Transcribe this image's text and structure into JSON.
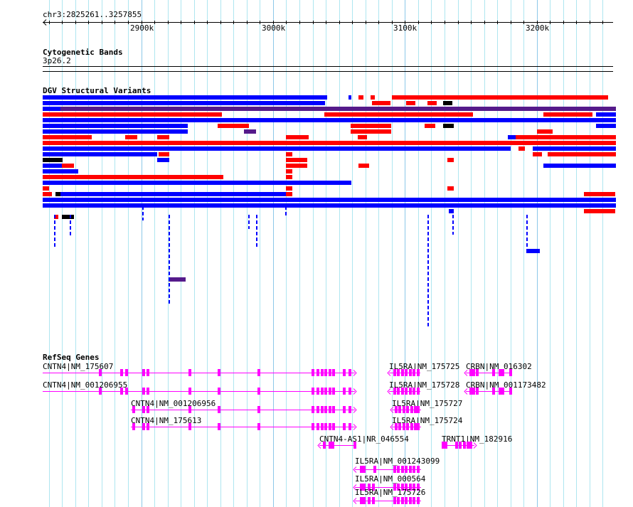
{
  "ruler": {
    "location": "chr3:2825261..3257855",
    "start_kb": 2825.261,
    "end_kb": 3257.855,
    "ticks": [
      {
        "kb": 2900,
        "label": "2900k"
      },
      {
        "kb": 3000,
        "label": "3000k"
      },
      {
        "kb": 3100,
        "label": "3100k"
      },
      {
        "kb": 3200,
        "label": "3200k"
      }
    ]
  },
  "cytoband": {
    "title": "Cytogenetic Bands",
    "band": "3p26.2"
  },
  "dgv": {
    "title": "DGV Structural Variants",
    "colors": {
      "b": "#0000ff",
      "r": "#ff0000",
      "p": "#551a8b",
      "k": "#000000"
    },
    "features": [
      [
        0,
        2825,
        3041,
        "b"
      ],
      [
        0,
        3057,
        3059,
        "b"
      ],
      [
        0,
        3065,
        3069,
        "r"
      ],
      [
        0,
        3074,
        3077,
        "r"
      ],
      [
        0,
        3090,
        3254,
        "r"
      ],
      [
        1,
        2825,
        3039,
        "b"
      ],
      [
        1,
        3075,
        3089,
        "r"
      ],
      [
        1,
        3101,
        3108,
        "r"
      ],
      [
        1,
        3117,
        3124,
        "r"
      ],
      [
        1,
        3129,
        3136,
        "k"
      ],
      [
        2,
        2825,
        2839,
        "b"
      ],
      [
        2,
        2839,
        3260,
        "p"
      ],
      [
        3,
        2825,
        2961,
        "r"
      ],
      [
        3,
        3039,
        3152,
        "r"
      ],
      [
        3,
        3205,
        3242,
        "r"
      ],
      [
        3,
        3245,
        3260,
        "b"
      ],
      [
        4,
        2825,
        3260,
        "b"
      ],
      [
        5,
        2825,
        2935,
        "b"
      ],
      [
        5,
        2958,
        2982,
        "r"
      ],
      [
        5,
        3059,
        3090,
        "r"
      ],
      [
        5,
        3115,
        3123,
        "r"
      ],
      [
        5,
        3129,
        3137,
        "k"
      ],
      [
        5,
        3245,
        3260,
        "b"
      ],
      [
        6,
        2825,
        2935,
        "b"
      ],
      [
        6,
        2978,
        2987,
        "p"
      ],
      [
        6,
        3059,
        3090,
        "r"
      ],
      [
        6,
        3200,
        3212,
        "r"
      ],
      [
        7,
        2825,
        2862,
        "r"
      ],
      [
        7,
        2888,
        2897,
        "r"
      ],
      [
        7,
        2912,
        2921,
        "r"
      ],
      [
        7,
        3010,
        3027,
        "r"
      ],
      [
        7,
        3064,
        3071,
        "r"
      ],
      [
        7,
        3178,
        3205,
        "b"
      ],
      [
        7,
        3184,
        3260,
        "r"
      ],
      [
        8,
        2825,
        3260,
        "r"
      ],
      [
        9,
        2825,
        3180,
        "b"
      ],
      [
        9,
        3186,
        3191,
        "r"
      ],
      [
        9,
        3197,
        3260,
        "b"
      ],
      [
        10,
        2825,
        2912,
        "b"
      ],
      [
        10,
        2913,
        2921,
        "r"
      ],
      [
        10,
        3010,
        3015,
        "r"
      ],
      [
        10,
        3197,
        3204,
        "r"
      ],
      [
        10,
        3208,
        3260,
        "r"
      ],
      [
        11,
        2825,
        2840,
        "k"
      ],
      [
        11,
        2912,
        2921,
        "b"
      ],
      [
        11,
        3010,
        3026,
        "r"
      ],
      [
        11,
        3132,
        3137,
        "r"
      ],
      [
        12,
        2825,
        2840,
        "b"
      ],
      [
        12,
        2840,
        2849,
        "r"
      ],
      [
        12,
        3010,
        3026,
        "r"
      ],
      [
        12,
        3065,
        3073,
        "r"
      ],
      [
        12,
        3205,
        3260,
        "b"
      ],
      [
        13,
        2825,
        2852,
        "b"
      ],
      [
        13,
        3010,
        3015,
        "r"
      ],
      [
        14,
        2825,
        2962,
        "r"
      ],
      [
        14,
        3010,
        3015,
        "r"
      ],
      [
        15,
        2825,
        3059,
        "b"
      ],
      [
        16,
        2825,
        2830,
        "r"
      ],
      [
        16,
        3010,
        3015,
        "r"
      ],
      [
        16,
        3132,
        3137,
        "r"
      ],
      [
        17,
        2825,
        2832,
        "r"
      ],
      [
        17,
        2835,
        2839,
        "k"
      ],
      [
        17,
        2839,
        3010,
        "b"
      ],
      [
        17,
        3010,
        3015,
        "r"
      ],
      [
        17,
        3236,
        3260,
        "r"
      ],
      [
        18,
        2825,
        3260,
        "b"
      ],
      [
        19,
        2825,
        3260,
        "b"
      ],
      [
        20,
        3133,
        3137,
        "b"
      ],
      [
        20,
        3236,
        3260,
        "r"
      ],
      [
        21,
        2840,
        2849,
        "k"
      ],
      [
        21,
        2834,
        2837,
        "r"
      ],
      [
        27,
        3192,
        3202,
        "b"
      ],
      [
        32,
        2921,
        2934,
        "p"
      ]
    ]
  },
  "refseq": {
    "title": "RefSeq Genes",
    "genes": [
      {
        "label": "CNTN4|NM_175607",
        "row": 0,
        "start": 2825,
        "end": 3062,
        "strand": "+",
        "exons": [
          2868,
          2884,
          2888,
          2901,
          2904,
          2936,
          2958,
          2988,
          3029,
          3033,
          3036,
          3039,
          3042,
          3045,
          3053,
          3057
        ]
      },
      {
        "label": "CNTN4|NM_001206955",
        "row": 1,
        "start": 2825,
        "end": 3062,
        "strand": "+",
        "exons": [
          2868,
          2884,
          2888,
          2901,
          2904,
          2936,
          2958,
          2988,
          3029,
          3033,
          3036,
          3039,
          3042,
          3045,
          3053,
          3057
        ]
      },
      {
        "label": "CNTN4|NM_001206956",
        "row": 2,
        "start": 2892,
        "end": 3062,
        "strand": "+",
        "exons": [
          2893,
          2901,
          2904,
          2936,
          2958,
          2988,
          3029,
          3033,
          3036,
          3039,
          3042,
          3045,
          3053,
          3057
        ]
      },
      {
        "label": "CNTN4|NM_175613",
        "row": 3,
        "start": 2892,
        "end": 3062,
        "strand": "+",
        "exons": [
          2893,
          2901,
          2904,
          2936,
          2958,
          2988,
          3029,
          3033,
          3036,
          3039,
          3042,
          3045,
          3053,
          3057
        ]
      },
      {
        "label": "IL5RA|NM_175725",
        "row": 0,
        "start": 3088,
        "end": 3112,
        "strand": "-",
        "exons": [
          3091,
          3094,
          3097,
          3100,
          3103,
          3106,
          3109
        ]
      },
      {
        "label": "IL5RA|NM_175728",
        "row": 1,
        "start": 3088,
        "end": 3112,
        "strand": "-",
        "exons": [
          3091,
          3094,
          3097,
          3100,
          3103,
          3106,
          3109
        ]
      },
      {
        "label": "IL5RA|NM_175727",
        "row": 2,
        "start": 3090,
        "end": 3112,
        "strand": "-",
        "exons": [
          3092,
          3095,
          3098,
          3101,
          3104,
          3107,
          3109
        ]
      },
      {
        "label": "IL5RA|NM_175724",
        "row": 3,
        "start": 3090,
        "end": 3112,
        "strand": "-",
        "exons": [
          3092,
          3095,
          3098,
          3101,
          3104,
          3107,
          3109
        ]
      },
      {
        "label": "CRBN|NM_016302",
        "row": 0,
        "start": 3146,
        "end": 3181,
        "strand": "-",
        "exons": [
          3149,
          3151,
          3154,
          3166,
          3171,
          3173,
          3179
        ]
      },
      {
        "label": "CRBN|NM_001173482",
        "row": 1,
        "start": 3146,
        "end": 3181,
        "strand": "-",
        "exons": [
          3149,
          3151,
          3154,
          3166,
          3171,
          3173,
          3179
        ]
      },
      {
        "label": "CNTN4-AS1|NR_046554",
        "row": 4,
        "start": 3035,
        "end": 3062,
        "strand": "-",
        "exons": [
          3038,
          3042,
          3044,
          3061
        ]
      },
      {
        "label": "TRNT1|NM_182916",
        "row": 4,
        "start": 3128,
        "end": 3153,
        "strand": "+",
        "exons": [
          3128,
          3130,
          3138,
          3141,
          3144,
          3147,
          3149
        ]
      },
      {
        "label": "IL5RA|NM_001243099",
        "row": 5,
        "start": 3062,
        "end": 3112,
        "strand": "-",
        "exons": [
          3066,
          3068,
          3076,
          3091,
          3094,
          3097,
          3100,
          3103,
          3106,
          3109
        ]
      },
      {
        "label": "IL5RA|NM_000564",
        "row": 6,
        "start": 3062,
        "end": 3112,
        "strand": "-",
        "exons": [
          3066,
          3068,
          3072,
          3075,
          3091,
          3094,
          3097,
          3100,
          3103,
          3106,
          3109
        ]
      },
      {
        "label": "IL5RA|NM_175726",
        "row": 7,
        "start": 3062,
        "end": 3112,
        "strand": "-",
        "exons": [
          3066,
          3068,
          3072,
          3075,
          3091,
          3094,
          3097,
          3100,
          3103,
          3106,
          3109
        ]
      }
    ]
  }
}
